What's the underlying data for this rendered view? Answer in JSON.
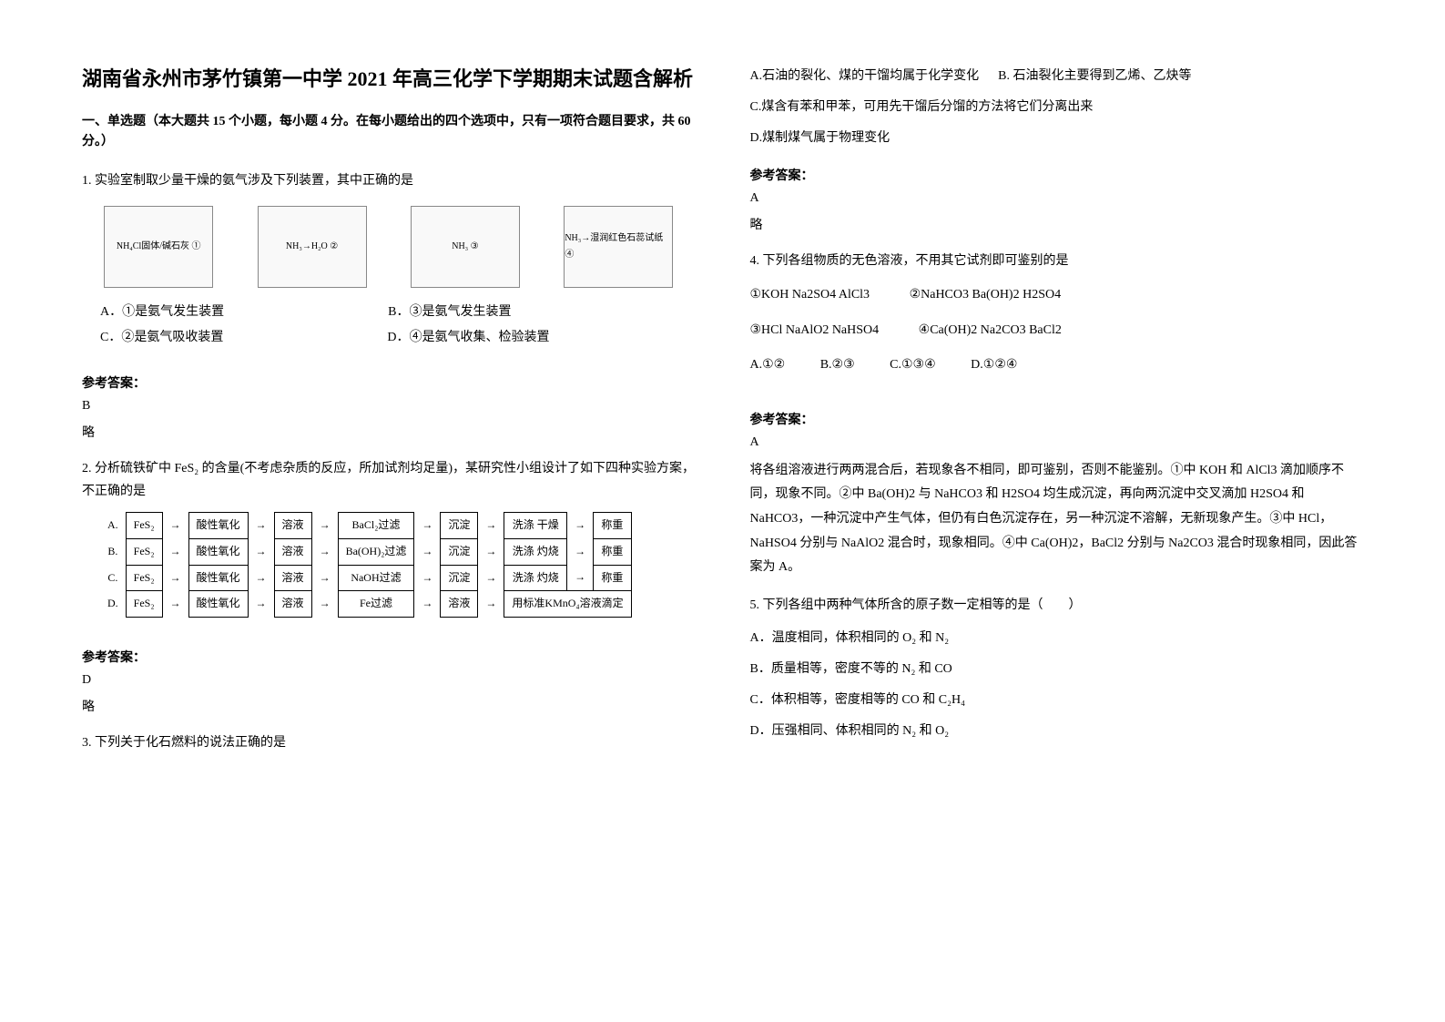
{
  "title": "湖南省永州市茅竹镇第一中学 2021 年高三化学下学期期末试题含解析",
  "section_header": "一、单选题（本大题共 15 个小题，每小题 4 分。在每小题给出的四个选项中，只有一项符合题目要求，共 60 分。）",
  "q1": {
    "text": "1. 实验室制取少量干燥的氨气涉及下列装置，其中正确的是",
    "diagrams": [
      "NH₄Cl固体/碱石灰 ①",
      "NH₃→H₂O ②",
      "NH₃ ③",
      "NH₃→湿润红色石蕊试纸 ④"
    ],
    "optA": "A．①是氨气发生装置",
    "optB": "B．③是氨气发生装置",
    "optC": "C．②是氨气吸收装置",
    "optD": "D．④是氨气收集、检验装置",
    "answer_label": "参考答案：",
    "answer": "B",
    "note": "略"
  },
  "q2": {
    "text": "2. 分析硫铁矿中 FeS₂ 的含量(不考虑杂质的反应，所加试剂均足量)，某研究性小组设计了如下四种实验方案，不正确的是",
    "schemes": {
      "rowA": [
        "A.",
        "FeS₂",
        "酸性氧化",
        "溶液",
        "BaCl₂过滤",
        "沉淀",
        "洗涤 干燥",
        "称重"
      ],
      "rowB": [
        "B.",
        "FeS₂",
        "酸性氧化",
        "溶液",
        "Ba(OH)₂过滤",
        "沉淀",
        "洗涤 灼烧",
        "称重"
      ],
      "rowC": [
        "C.",
        "FeS₂",
        "酸性氧化",
        "溶液",
        "NaOH过滤",
        "沉淀",
        "洗涤 灼烧",
        "称重"
      ],
      "rowD": [
        "D.",
        "FeS₂",
        "酸性氧化",
        "溶液",
        "Fe过滤",
        "溶液",
        "用标准KMnO₄溶液滴定",
        ""
      ]
    },
    "answer_label": "参考答案：",
    "answer": "D",
    "note": "略"
  },
  "q3": {
    "text": "3. 下列关于化石燃料的说法正确的是",
    "optA": "A.石油的裂化、煤的干馏均属于化学变化",
    "optB": "B. 石油裂化主要得到乙烯、乙炔等",
    "optC": "C.煤含有苯和甲苯，可用先干馏后分馏的方法将它们分离出来",
    "optD": "D.煤制煤气属于物理变化",
    "answer_label": "参考答案：",
    "answer": "A",
    "note": "略"
  },
  "q4": {
    "text": "4. 下列各组物质的无色溶液，不用其它试剂即可鉴别的是",
    "line1a": "①KOH   Na2SO4   AlCl3",
    "line1b": "②NaHCO3   Ba(OH)2   H2SO4",
    "line2a": "③HCl   NaAlO2     NaHSO4",
    "line2b": "④Ca(OH)2   Na2CO3   BaCl2",
    "optA": "A.①②",
    "optB": "B.②③",
    "optC": "C.①③④",
    "optD": "D.①②④",
    "answer_label": "参考答案：",
    "answer": "A",
    "explanation": "将各组溶液进行两两混合后，若现象各不相同，即可鉴别，否则不能鉴别。①中 KOH 和 AlCl3 滴加顺序不同，现象不同。②中 Ba(OH)2 与 NaHCO3 和 H2SO4 均生成沉淀，再向两沉淀中交叉滴加 H2SO4 和 NaHCO3，一种沉淀中产生气体，但仍有白色沉淀存在，另一种沉淀不溶解，无新现象产生。③中 HCl，NaHSO4 分别与 NaAlO2 混合时，现象相同。④中 Ca(OH)2，BaCl2 分别与 Na2CO3 混合时现象相同，因此答案为 A。"
  },
  "q5": {
    "text": "5. 下列各组中两种气体所含的原子数一定相等的是（　　）",
    "optA": "A．温度相同，体积相同的 O₂ 和 N₂",
    "optB": "B．质量相等，密度不等的 N₂ 和 CO",
    "optC": "C．体积相等，密度相等的 CO 和 C₂H₄",
    "optD": "D．压强相同、体积相同的 N₂ 和 O₂"
  },
  "colors": {
    "text": "#000000",
    "background": "#ffffff",
    "border": "#000000"
  }
}
